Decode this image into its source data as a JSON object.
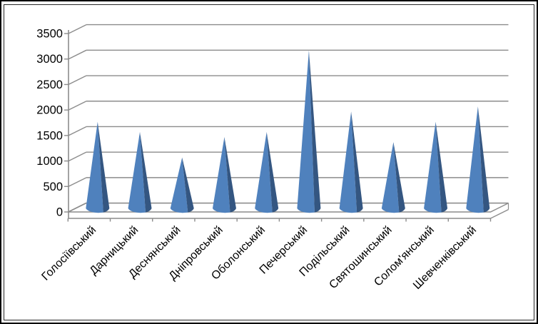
{
  "chart_data": {
    "type": "bar",
    "subtype": "3d-cone",
    "title": "",
    "xlabel": "",
    "ylabel": "",
    "categories": [
      "Голосіївський",
      "Дарницький",
      "Деснянський",
      "Дніпровський",
      "Оболонський",
      "Печерський",
      "Подільський",
      "Святошинський",
      "Солом'янський",
      "Шевченківський"
    ],
    "values": [
      1700,
      1500,
      1000,
      1400,
      1500,
      3100,
      1900,
      1300,
      1700,
      2000
    ],
    "ylim": [
      0,
      3500
    ],
    "ytick_step": 500,
    "ytick_labels": [
      "0",
      "500",
      "1000",
      "1500",
      "2000",
      "2500",
      "3000",
      "3500"
    ],
    "grid": true,
    "legend": false,
    "x_label_rotation_deg": -45
  },
  "colors": {
    "cone_face": "#4F81BD",
    "cone_side": "#345681",
    "gridline": "#8C8C8C",
    "axis": "#8C8C8C",
    "text": "#000000",
    "background": "#FFFFFF",
    "outer_border": "#000000",
    "inner_border": "#262626"
  }
}
